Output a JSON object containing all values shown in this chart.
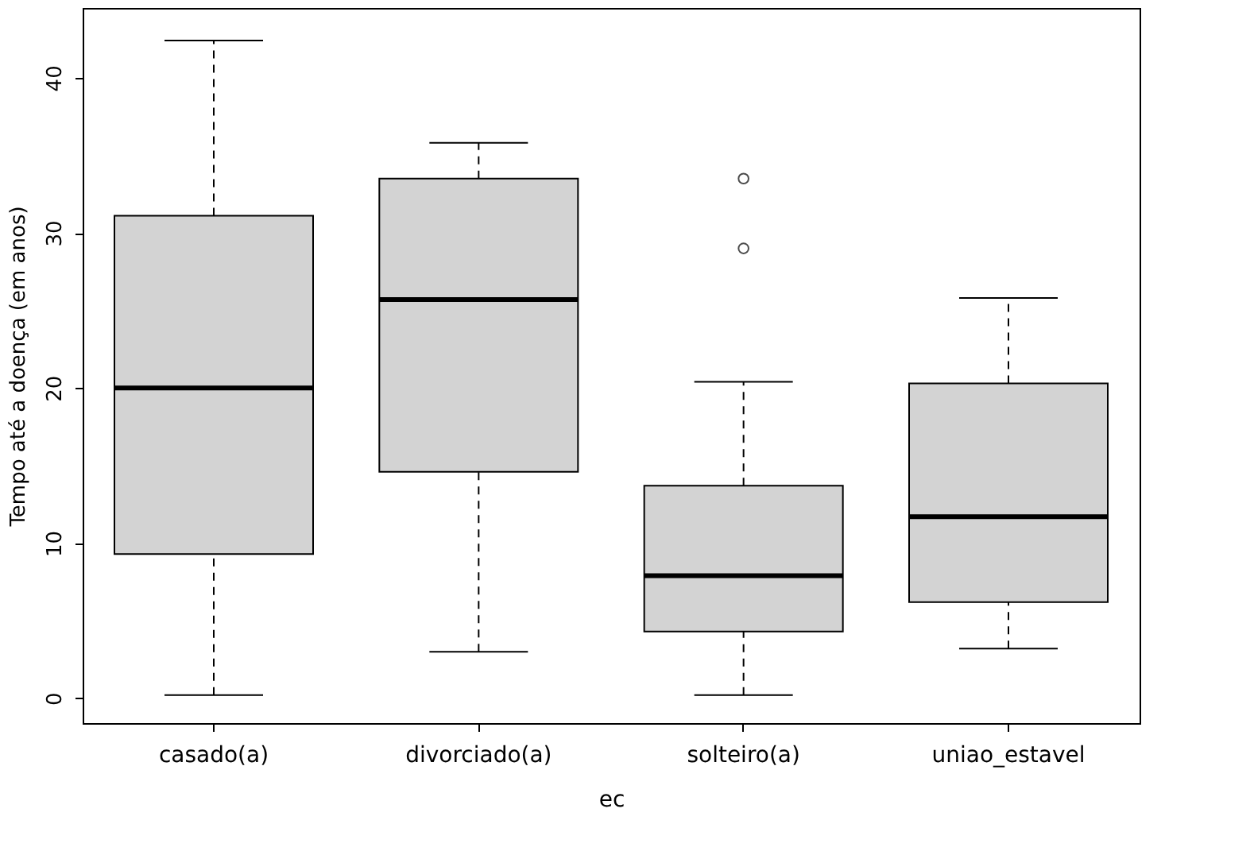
{
  "chart_data": {
    "type": "box",
    "xlabel": "ec",
    "ylabel": "Tempo até a doença (em anos)",
    "categories": [
      "casado(a)",
      "divorciado(a)",
      "solteiro(a)",
      "uniao_estavel"
    ],
    "boxes": [
      {
        "low": 0.2,
        "q1": 9.3,
        "median": 20.0,
        "q3": 31.1,
        "high": 42.4
      },
      {
        "low": 3.0,
        "q1": 14.6,
        "median": 25.7,
        "q3": 33.5,
        "high": 35.8
      },
      {
        "low": 0.2,
        "q1": 4.3,
        "median": 7.9,
        "q3": 13.7,
        "high": 20.4,
        "outliers": [
          33.5,
          29.0
        ]
      },
      {
        "low": 3.2,
        "q1": 6.2,
        "median": 11.7,
        "q3": 20.3,
        "high": 25.8
      }
    ],
    "color": "#d3d3d3",
    "ylim": [
      -1.6,
      44.5
    ],
    "yticks": [
      0,
      10,
      20,
      30,
      40
    ],
    "grid": false,
    "marker": "circle"
  }
}
